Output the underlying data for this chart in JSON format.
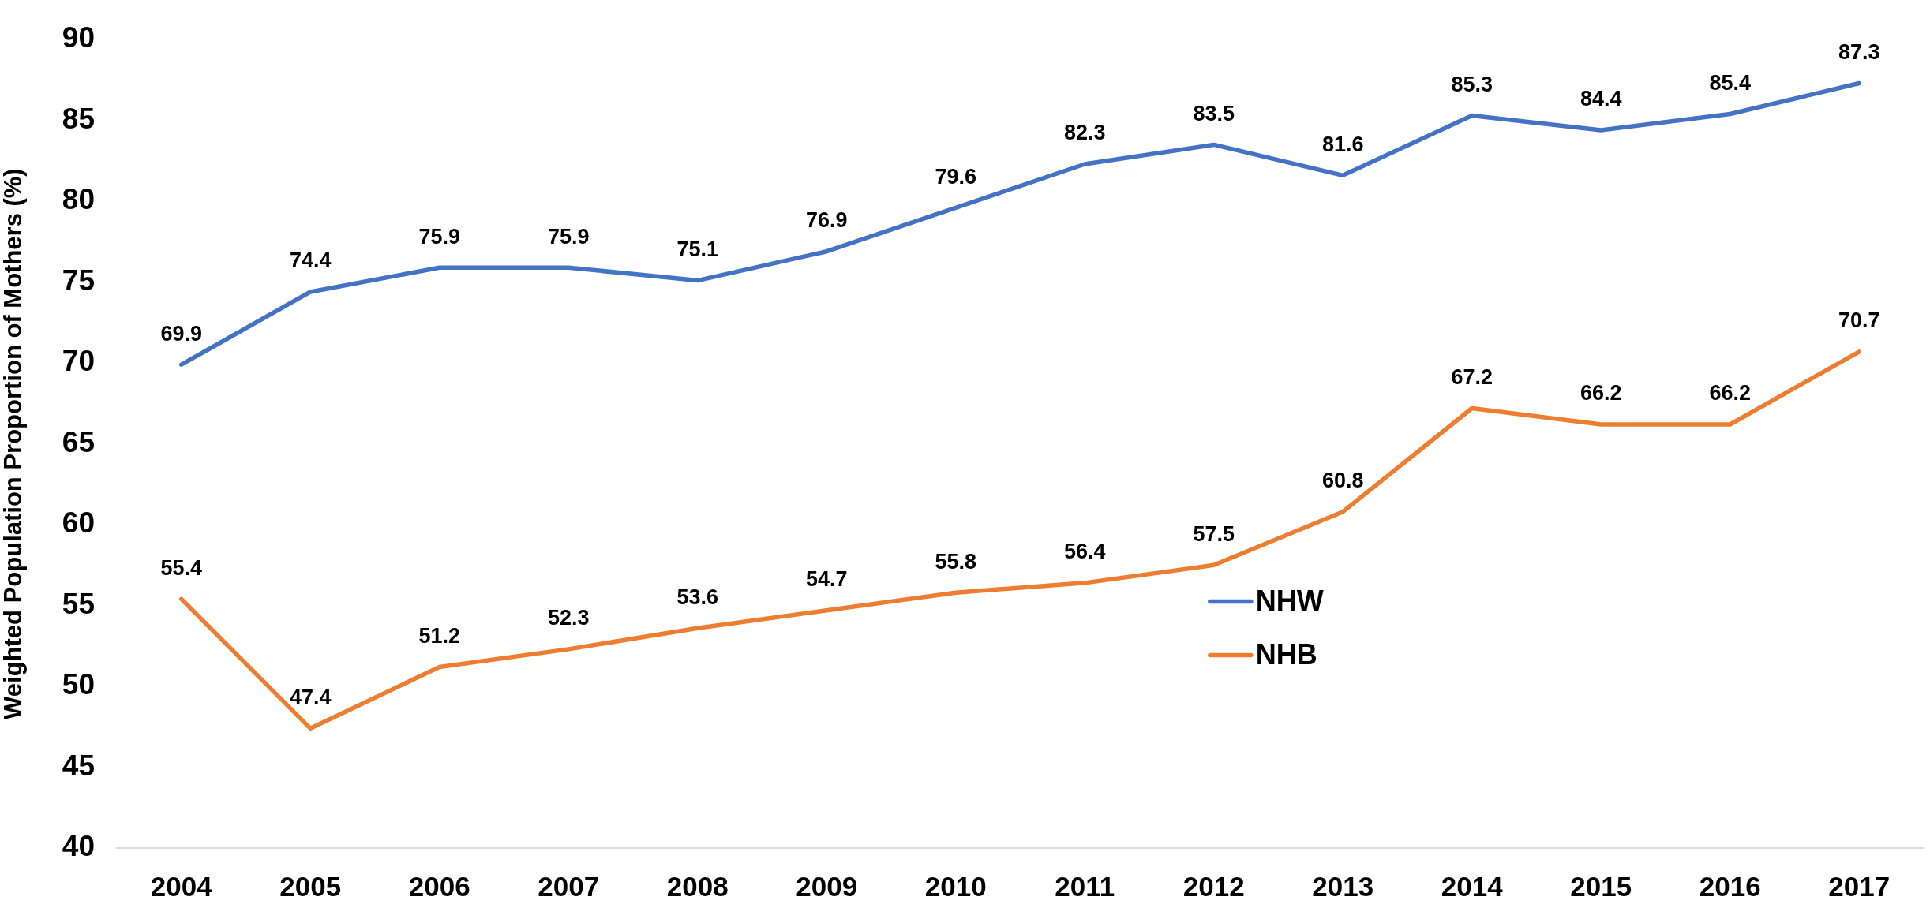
{
  "chart_data": {
    "type": "line",
    "ylabel": "Weighted Population Proportion of Mothers (%)",
    "categories": [
      "2004",
      "2005",
      "2006",
      "2007",
      "2008",
      "2009",
      "2010",
      "2011",
      "2012",
      "2013",
      "2014",
      "2015",
      "2016",
      "2017"
    ],
    "series": [
      {
        "name": "NHW",
        "color": "#4472c4",
        "values": [
          69.9,
          74.4,
          75.9,
          75.9,
          75.1,
          76.9,
          79.6,
          82.3,
          83.5,
          81.6,
          85.3,
          84.4,
          85.4,
          87.3
        ]
      },
      {
        "name": "NHB",
        "color": "#ed7d31",
        "values": [
          55.4,
          47.4,
          51.2,
          52.3,
          53.6,
          54.7,
          55.8,
          56.4,
          57.5,
          60.8,
          67.2,
          66.2,
          66.2,
          70.7
        ]
      }
    ],
    "ylim": [
      40,
      90
    ],
    "yticks": [
      40,
      45,
      50,
      55,
      60,
      65,
      70,
      75,
      80,
      85,
      90
    ],
    "grid": false,
    "legend": "bottom right",
    "marker": "none",
    "line_style": "solid",
    "data_labels": true
  }
}
